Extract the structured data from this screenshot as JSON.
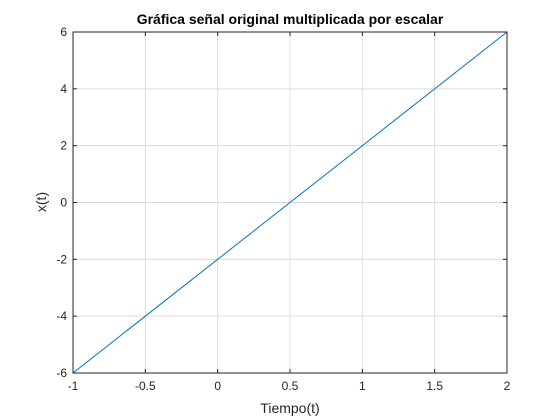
{
  "chart_data": {
    "type": "line",
    "title": "Gráfica señal original multiplicada por escalar",
    "xlabel": "Tiempo(t)",
    "ylabel": "x(t)",
    "xlim": [
      -1,
      2
    ],
    "ylim": [
      -6,
      6
    ],
    "xticks": [
      -1,
      -0.5,
      0,
      0.5,
      1,
      1.5,
      2
    ],
    "xtick_labels": [
      "-1",
      "-0.5",
      "0",
      "0.5",
      "1",
      "1.5",
      "2"
    ],
    "yticks": [
      -6,
      -4,
      -2,
      0,
      2,
      4,
      6
    ],
    "ytick_labels": [
      "-6",
      "-4",
      "-2",
      "0",
      "2",
      "4",
      "6"
    ],
    "grid": true,
    "series": [
      {
        "x": [
          -1,
          2
        ],
        "y": [
          -6,
          6
        ],
        "color": "#0072BD"
      }
    ]
  }
}
